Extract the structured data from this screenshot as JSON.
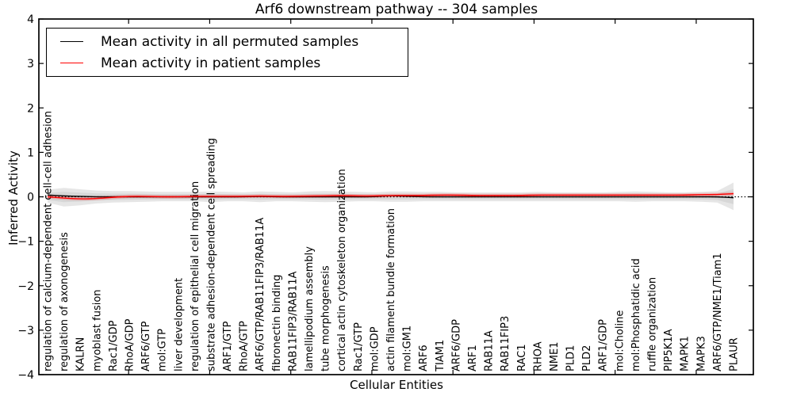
{
  "title": "Arf6 downstream pathway -- 304 samples",
  "axes": {
    "xlabel": "Cellular Entities",
    "ylabel": "Inferred Activity"
  },
  "legend": {
    "items": [
      {
        "label": "Mean activity in all permuted samples",
        "color": "#000000"
      },
      {
        "label": "Mean activity in patient samples",
        "color": "#ff0000"
      }
    ]
  },
  "colors": {
    "permuted_line": "#000000",
    "patient_line": "#ff0000",
    "band": "#c8c8c8",
    "zero_line": "#000000",
    "frame": "#000000",
    "background": "#ffffff"
  },
  "chart_data": {
    "type": "line",
    "title": "Arf6 downstream pathway -- 304 samples",
    "xlabel": "Cellular Entities",
    "ylabel": "Inferred Activity",
    "ylim": [
      -4,
      4
    ],
    "yticks": [
      -4,
      -3,
      -2,
      -1,
      0,
      1,
      2,
      3,
      4
    ],
    "grid": false,
    "legend_position": "upper left",
    "zero_reference_line": {
      "y": 0,
      "style": "dotted",
      "color": "#000000"
    },
    "categories": [
      "regulation of calcium-dependent cell-cell adhesion",
      "regulation of axonogenesis",
      "KALRN",
      "myoblast fusion",
      "Rac1/GDP",
      "RhoA/GDP",
      "ARF6/GTP",
      "mol:GTP",
      "liver development",
      "regulation of epithelial cell migration",
      "substrate adhesion-dependent cell spreading",
      "ARF1/GTP",
      "RhoA/GTP",
      "ARF6/GTP/RAB11FIP3/RAB11A",
      "fibronectin binding",
      "RAB11FIP3/RAB11A",
      "lamellipodium assembly",
      "tube morphogenesis",
      "cortical actin cytoskeleton organization",
      "Rac1/GTP",
      "mol:GDP",
      "actin filament bundle formation",
      "mol:GM1",
      "ARF6",
      "TIAM1",
      "ARF6/GDP",
      "ARF1",
      "RAB11A",
      "RAB11FIP3",
      "RAC1",
      "RHOA",
      "NME1",
      "PLD1",
      "PLD2",
      "ARF1/GDP",
      "mol:Choline",
      "mol:Phosphatidic acid",
      "ruffle organization",
      "PIP5K1A",
      "MAPK1",
      "MAPK3",
      "ARF6/GTP/NME1/Tiam1",
      "PLAUR"
    ],
    "series": [
      {
        "name": "Mean activity in all permuted samples",
        "color": "#000000",
        "values": [
          0.04,
          0.02,
          0.01,
          0,
          0,
          0,
          0,
          0,
          0,
          0,
          0,
          0,
          0,
          0.01,
          0,
          0,
          0,
          0,
          0,
          0,
          0,
          0.03,
          0.01,
          0,
          0,
          0,
          0,
          0,
          0,
          0,
          0,
          0,
          0,
          0,
          0,
          0,
          0,
          0,
          0,
          0,
          0,
          0,
          -0.02
        ]
      },
      {
        "name": "Mean activity in patient samples",
        "color": "#ff0000",
        "values": [
          0,
          -0.03,
          -0.05,
          -0.04,
          -0.01,
          0.01,
          0.01,
          0,
          0,
          0.01,
          0.01,
          0.01,
          0.01,
          0.02,
          0.01,
          0.01,
          0.02,
          0.02,
          0.03,
          0.02,
          0.02,
          0.03,
          0.03,
          0.03,
          0.04,
          0.04,
          0.03,
          0.03,
          0.03,
          0.03,
          0.04,
          0.04,
          0.04,
          0.04,
          0.04,
          0.04,
          0.04,
          0.04,
          0.04,
          0.04,
          0.05,
          0.05,
          0.07
        ]
      }
    ],
    "band": {
      "name": "permuted activity spread",
      "color": "#c8c8c8",
      "upper": [
        0.16,
        0.2,
        0.17,
        0.14,
        0.13,
        0.13,
        0.12,
        0.11,
        0.11,
        0.11,
        0.12,
        0.11,
        0.1,
        0.12,
        0.11,
        0.1,
        0.12,
        0.13,
        0.12,
        0.11,
        0.1,
        0.12,
        0.12,
        0.11,
        0.11,
        0.1,
        0.1,
        0.1,
        0.1,
        0.1,
        0.11,
        0.1,
        0.1,
        0.1,
        0.1,
        0.11,
        0.12,
        0.11,
        0.1,
        0.1,
        0.11,
        0.13,
        0.32
      ],
      "lower": [
        -0.13,
        -0.22,
        -0.19,
        -0.15,
        -0.13,
        -0.12,
        -0.11,
        -0.1,
        -0.1,
        -0.1,
        -0.12,
        -0.1,
        -0.1,
        -0.12,
        -0.1,
        -0.1,
        -0.11,
        -0.12,
        -0.11,
        -0.1,
        -0.1,
        -0.11,
        -0.11,
        -0.1,
        -0.1,
        -0.1,
        -0.1,
        -0.1,
        -0.1,
        -0.1,
        -0.1,
        -0.1,
        -0.1,
        -0.1,
        -0.1,
        -0.1,
        -0.11,
        -0.1,
        -0.1,
        -0.1,
        -0.11,
        -0.13,
        -0.3
      ]
    }
  }
}
